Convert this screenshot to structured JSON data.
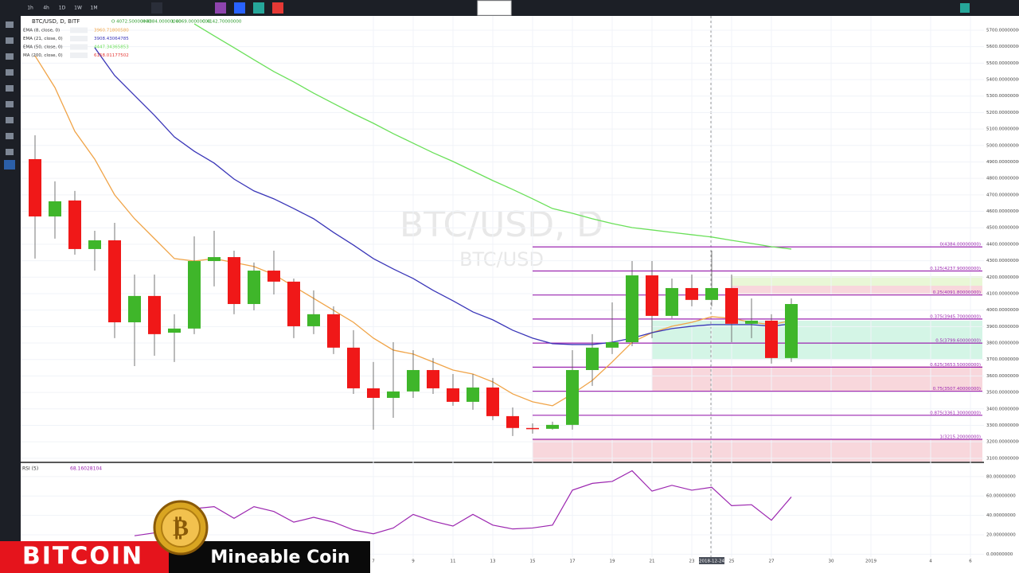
{
  "toolbar": {
    "intervals": [
      "1h",
      "4h",
      "1D",
      "1W",
      "1M"
    ]
  },
  "chart_data": [
    {
      "type": "candlestick",
      "title": "BTC/USD, D, BITF",
      "watermark": "BTC/USD, D",
      "watermark_sub": "BTC/USD",
      "ohlc_readout": [
        "O 4072.50000000",
        "H 4384.00000000",
        "L 4069.00000000",
        "C 4142.70000000"
      ],
      "categories": [
        "2018-11-20",
        "2018-11-21",
        "2018-11-22",
        "2018-11-23",
        "2018-11-24",
        "2018-11-25",
        "2018-11-26",
        "2018-11-27",
        "2018-11-28",
        "2018-11-29",
        "2018-11-30",
        "2018-12-01",
        "2018-12-02",
        "2018-12-03",
        "2018-12-04",
        "2018-12-05",
        "2018-12-06",
        "2018-12-07",
        "2018-12-08",
        "2018-12-09",
        "2018-12-10",
        "2018-12-11",
        "2018-12-12",
        "2018-12-13",
        "2018-12-14",
        "2018-12-15",
        "2018-12-16",
        "2018-12-17",
        "2018-12-18",
        "2018-12-19",
        "2018-12-20",
        "2018-12-21",
        "2018-12-22",
        "2018-12-23",
        "2018-12-24",
        "2018-12-25",
        "2018-12-26",
        "2018-12-27",
        "2018-12-28"
      ],
      "open": [
        4917,
        4569,
        4666,
        4371,
        4424,
        3926,
        4086,
        3863,
        3888,
        4298,
        4322,
        4037,
        4240,
        4173,
        3902,
        3975,
        3772,
        3525,
        3467,
        3506,
        3636,
        3525,
        3443,
        3530,
        3356,
        3284,
        3279,
        3303,
        3636,
        3772,
        3805,
        4211,
        3965,
        4134,
        4062,
        4134,
        3917,
        3936,
        3709
      ],
      "high": [
        5062,
        4782,
        4724,
        4482,
        4530,
        4216,
        4216,
        3975,
        4448,
        4482,
        4361,
        4289,
        4361,
        4192,
        4120,
        4023,
        3878,
        3685,
        3805,
        3757,
        3709,
        3612,
        3612,
        3588,
        3409,
        3312,
        3322,
        3757,
        3854,
        4047,
        4298,
        4298,
        4192,
        4216,
        4361,
        4216,
        4071,
        3975,
        4071
      ],
      "low": [
        4313,
        4434,
        4337,
        4240,
        3830,
        3660,
        3723,
        3685,
        3854,
        4144,
        3975,
        3999,
        4095,
        3830,
        3854,
        3733,
        3491,
        3274,
        3346,
        3467,
        3491,
        3419,
        3395,
        3332,
        3235,
        3250,
        3274,
        3274,
        3540,
        3733,
        3781,
        3830,
        3950,
        4023,
        4023,
        3805,
        3830,
        3675,
        3685
      ],
      "close": [
        4569,
        4661,
        4371,
        4424,
        3926,
        4086,
        3854,
        3888,
        4298,
        4322,
        4037,
        4240,
        4173,
        3902,
        3975,
        3772,
        3525,
        3467,
        3506,
        3636,
        3525,
        3443,
        3530,
        3356,
        3284,
        3279,
        3303,
        3636,
        3772,
        3805,
        4211,
        3965,
        4134,
        4062,
        4134,
        3917,
        3936,
        3709,
        4037
      ],
      "up_color": "#3fb62a",
      "down_color": "#f01818",
      "overlays": [
        {
          "name": "EMA (8, close, 0)",
          "color": "#f0a448",
          "last_label": "3960.71800580",
          "values": [
            5545,
            5352,
            5086,
            4917,
            4700,
            4555,
            4434,
            4313,
            4298,
            4313,
            4289,
            4265,
            4216,
            4144,
            4071,
            3999,
            3926,
            3830,
            3757,
            3733,
            3685,
            3636,
            3612,
            3564,
            3491,
            3443,
            3419,
            3491,
            3573,
            3685,
            3805,
            3863,
            3902,
            3926,
            3960,
            3950,
            3926,
            3912,
            3936
          ]
        },
        {
          "name": "EMA (21, close, 0)",
          "color": "#3a36b8",
          "last_label": "3908.43064785",
          "values": [
            null,
            null,
            null,
            5594,
            5425,
            5304,
            5183,
            5052,
            4965,
            4893,
            4796,
            4724,
            4676,
            4617,
            4555,
            4472,
            4395,
            4313,
            4250,
            4192,
            4120,
            4057,
            3989,
            3941,
            3878,
            3830,
            3796,
            3791,
            3791,
            3805,
            3830,
            3863,
            3888,
            3902,
            3912,
            3912,
            3912,
            3902,
            3917
          ]
        },
        {
          "name": "EMA (50, close, 0)",
          "color": "#6be05a",
          "last_label": "4447.34365853",
          "values": [
            null,
            null,
            null,
            null,
            null,
            null,
            null,
            null,
            5739,
            5666,
            5594,
            5521,
            5449,
            5386,
            5318,
            5255,
            5193,
            5135,
            5072,
            5014,
            4956,
            4903,
            4845,
            4787,
            4733,
            4676,
            4617,
            4588,
            4555,
            4526,
            4501,
            4487,
            4472,
            4458,
            4444,
            4424,
            4405,
            4385,
            4371
          ]
        },
        {
          "name": "MA (200, close, 0)",
          "color": "#e53935",
          "last_label": "6158.01177502",
          "values": [
            null,
            null,
            null,
            null,
            null,
            null,
            null,
            null,
            null,
            null,
            null,
            null,
            null,
            null,
            null,
            null,
            null,
            null,
            null,
            null,
            null,
            null,
            null,
            null,
            null,
            null,
            null,
            null,
            null,
            null,
            null,
            null,
            null,
            null,
            null,
            null,
            null,
            null,
            null
          ]
        }
      ],
      "xticks": [
        {
          "value": "2018-12-07",
          "label": "7"
        },
        {
          "value": "2018-12-09",
          "label": "9"
        },
        {
          "value": "2018-12-11",
          "label": "11"
        },
        {
          "value": "2018-12-13",
          "label": "13"
        },
        {
          "value": "2018-12-15",
          "label": "15"
        },
        {
          "value": "2018-12-17",
          "label": "17"
        },
        {
          "value": "2018-12-19",
          "label": "19"
        },
        {
          "value": "2018-12-21",
          "label": "21"
        },
        {
          "value": "2018-12-23",
          "label": "23"
        },
        {
          "value": "2018-12-24",
          "label": "2018-12-24"
        },
        {
          "value": "2018-12-25",
          "label": "25"
        },
        {
          "value": "2018-12-27",
          "label": "27"
        },
        {
          "value": "2018-12-30",
          "label": "30"
        },
        {
          "value": "2019-01-01",
          "label": "2019"
        },
        {
          "value": "2019-01-04",
          "label": "4"
        },
        {
          "value": "2019-01-06",
          "label": "6"
        }
      ],
      "ylim": [
        3080,
        5787
      ],
      "yticks": [
        {
          "value": 3100,
          "label": "3100.00000000"
        },
        {
          "value": 3200,
          "label": "3200.00000000"
        },
        {
          "value": 3300,
          "label": "3300.00000000"
        },
        {
          "value": 3400,
          "label": "3400.00000000"
        },
        {
          "value": 3500,
          "label": "3500.00000000"
        },
        {
          "value": 3600,
          "label": "3600.00000000"
        },
        {
          "value": 3700,
          "label": "3700.00000000"
        },
        {
          "value": 3800,
          "label": "3800.00000000"
        },
        {
          "value": 3900,
          "label": "3900.00000000"
        },
        {
          "value": 4000,
          "label": "4000.00000000"
        },
        {
          "value": 4100,
          "label": "4100.00000000"
        },
        {
          "value": 4200,
          "label": "4200.00000000"
        },
        {
          "value": 4300,
          "label": "4300.00000000"
        },
        {
          "value": 4400,
          "label": "4400.00000000"
        },
        {
          "value": 4500,
          "label": "4500.00000000"
        },
        {
          "value": 4600,
          "label": "4600.00000000"
        },
        {
          "value": 4700,
          "label": "4700.00000000"
        },
        {
          "value": 4800,
          "label": "4800.00000000"
        },
        {
          "value": 4900,
          "label": "4900.00000000"
        },
        {
          "value": 5000,
          "label": "5000.00000000"
        },
        {
          "value": 5100,
          "label": "5100.00000000"
        },
        {
          "value": 5200,
          "label": "5200.00000000"
        },
        {
          "value": 5300,
          "label": "5300.00000000"
        },
        {
          "value": 5400,
          "label": "5400.00000000"
        },
        {
          "value": 5500,
          "label": "5500.00000000"
        },
        {
          "value": 5600,
          "label": "5600.00000000"
        },
        {
          "value": 5700,
          "label": "5700.00000000"
        }
      ],
      "fib_levels": [
        {
          "value": 4384,
          "label": "0(4384.00000000)"
        },
        {
          "value": 4237.9,
          "label": "0.125(4237.90000000)"
        },
        {
          "value": 4091.8,
          "label": "0.25(4091.80000000)"
        },
        {
          "value": 3945.7,
          "label": "0.375(3945.70000000)"
        },
        {
          "value": 3799.6,
          "label": "0.5(3799.60000000)"
        },
        {
          "value": 3653.5,
          "label": "0.625(3653.50000000)"
        },
        {
          "value": 3507.4,
          "label": "0.75(3507.40000000)"
        },
        {
          "value": 3361.3,
          "label": "0.875(3361.30000000)"
        },
        {
          "value": 3215.2,
          "label": "1(3215.20000000)"
        }
      ],
      "grid": true
    },
    {
      "type": "line",
      "title": "RSI (5)",
      "value_label": "68.16028104",
      "series": [
        {
          "color": "#9c27b0",
          "values": [
            null,
            null,
            null,
            null,
            null,
            19,
            22,
            35,
            47,
            49,
            37,
            49,
            44,
            33,
            38,
            33,
            25,
            21,
            27,
            41,
            34,
            29,
            41,
            30,
            26,
            27,
            30,
            66,
            73,
            75,
            86,
            65,
            71,
            66,
            69,
            50,
            51,
            35,
            59
          ]
        }
      ],
      "ylim": [
        -3,
        93
      ],
      "yticks": [
        {
          "value": 80,
          "label": "80.00000000"
        },
        {
          "value": 60,
          "label": "60.00000000"
        },
        {
          "value": 40,
          "label": "40.00000000"
        },
        {
          "value": 20,
          "label": "20.00000000"
        },
        {
          "value": 0,
          "label": "0.00000000"
        }
      ]
    }
  ],
  "banner": {
    "title": "BITCOIN",
    "subtitle": "Mineable Coin"
  }
}
